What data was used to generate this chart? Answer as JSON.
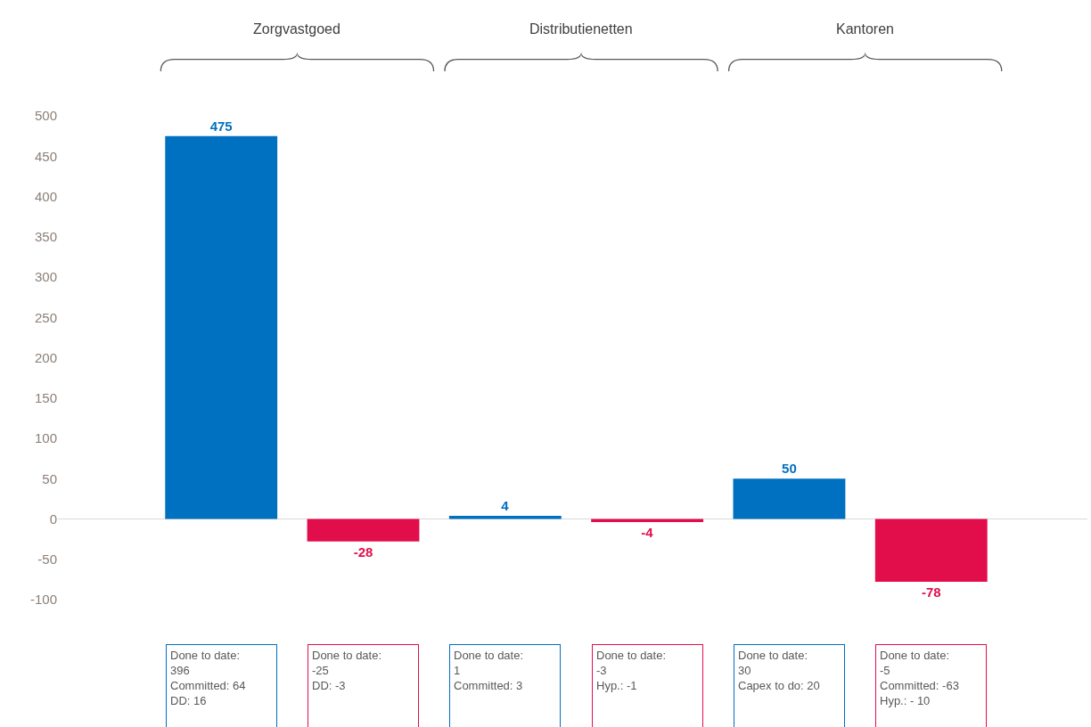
{
  "chart_data": {
    "type": "bar",
    "categories": [
      null,
      null,
      null,
      null,
      null,
      null
    ],
    "values": [
      475,
      -28,
      4,
      -4,
      50,
      -78
    ],
    "colors": [
      "#0070c0",
      "#e20e4b",
      "#0070c0",
      "#e20e4b",
      "#0070c0",
      "#e20e4b"
    ],
    "data_labels": true,
    "ylim": [
      -100,
      500
    ],
    "yticks": [
      -100,
      -50,
      0,
      50,
      100,
      150,
      200,
      250,
      300,
      350,
      400,
      450,
      500
    ],
    "grid": false,
    "legend": false,
    "ref_lines": [
      {
        "axis": "y",
        "value": 0,
        "color": "#d9d9d9"
      }
    ],
    "annotations": [
      "Zorgvastgoed",
      "Distributienetten",
      "Kantoren",
      "Done to date:\n396\nCommitted: 64\nDD: 16",
      "Done to date:\n-25\nDD: -3",
      "Done to date:\n1\nCommitted: 3",
      "Done to date:\n-3\nHyp.: -1",
      "Done to date:\n30\nCapex to do: 20",
      "Done to date:\n-5\nCommitted: -63\nHyp.: - 10"
    ]
  }
}
